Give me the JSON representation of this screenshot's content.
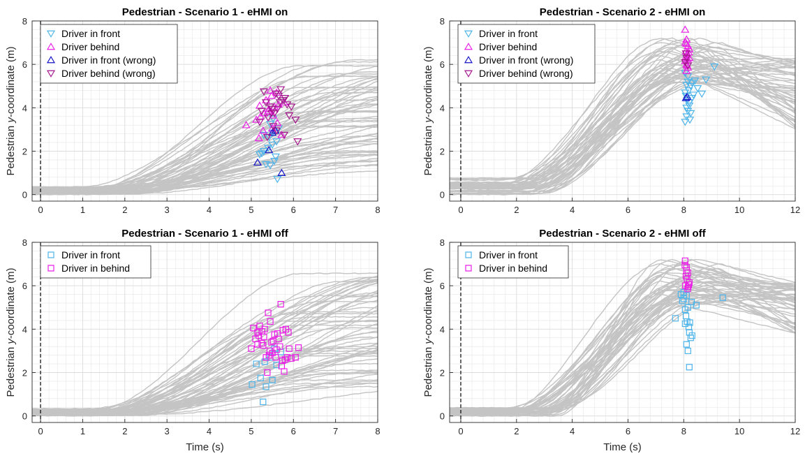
{
  "figure": {
    "xlabel": "Time (s)",
    "ylabel_prefix": "Pedestrian ",
    "ylabel_italic": "y",
    "ylabel_suffix": "-coordinate (m)"
  },
  "colors": {
    "trajectory": "#c4c4c4",
    "front": "#4db4ea",
    "behind": "#ea1ee6",
    "front_wrong": "#1414c8",
    "behind_wrong": "#a4148c",
    "grid": "#e6e6e6",
    "axis": "#262626"
  },
  "chart_data": [
    {
      "type": "scatter",
      "title": "Pedestrian - Scenario 1 - eHMI on",
      "xlabel": "",
      "ylabel": "Pedestrian y-coordinate (m)",
      "xlim": [
        -0.2,
        8
      ],
      "ylim": [
        -0.3,
        8
      ],
      "xticks": [
        0,
        1,
        2,
        3,
        4,
        5,
        6,
        7,
        8
      ],
      "yticks": [
        0,
        2,
        4,
        6,
        8
      ],
      "grid": true,
      "legend_position": "top-left",
      "vline_x": 0,
      "trajectories": {
        "count": 60,
        "t_end": 8,
        "crossing_start": [
          0.8,
          2.2
        ],
        "start_y": [
          0.0,
          0.35
        ],
        "final_y": [
          1.0,
          6.3
        ],
        "peaked": false
      },
      "series": [
        {
          "name": "Driver in front",
          "marker": "triangle-down",
          "color_key": "front",
          "x": [
            5.62,
            5.45,
            5.2,
            5.3,
            5.4,
            5.5,
            5.6,
            5.35,
            5.55,
            5.42,
            5.5,
            5.65,
            5.45,
            5.3,
            5.52,
            5.25,
            5.58
          ],
          "y": [
            0.72,
            1.35,
            1.85,
            2.0,
            2.15,
            2.3,
            2.45,
            1.4,
            1.55,
            2.65,
            2.85,
            3.05,
            3.25,
            2.75,
            3.5,
            1.9,
            1.75
          ]
        },
        {
          "name": "Driver behind",
          "marker": "triangle-up",
          "color_key": "behind",
          "x": [
            4.88,
            5.12,
            5.22,
            5.3,
            5.42,
            5.55,
            5.65,
            5.78,
            5.35,
            5.48,
            5.6,
            5.2,
            5.4,
            5.52,
            5.72,
            5.28,
            5.62,
            5.45,
            5.18,
            5.5
          ],
          "y": [
            3.2,
            3.45,
            3.6,
            3.75,
            3.95,
            4.05,
            4.15,
            4.25,
            4.35,
            4.55,
            4.7,
            4.1,
            3.85,
            3.65,
            2.75,
            2.95,
            3.3,
            4.8,
            2.6,
            3.05
          ]
        },
        {
          "name": "Driver in front (wrong)",
          "marker": "triangle-up",
          "color_key": "front_wrong",
          "x": [
            5.15,
            5.42,
            5.5,
            5.57,
            5.72
          ],
          "y": [
            1.48,
            2.05,
            2.85,
            2.95,
            1.0
          ]
        },
        {
          "name": "Driver behind (wrong)",
          "marker": "triangle-down",
          "color_key": "behind_wrong",
          "x": [
            5.25,
            5.35,
            5.45,
            5.55,
            5.65,
            5.75,
            5.85,
            5.95,
            6.05,
            6.1,
            5.3,
            5.5,
            5.7,
            5.9,
            5.2,
            5.4,
            5.6,
            5.8,
            5.52,
            5.68,
            5.38,
            5.48,
            5.58,
            5.78,
            5.62
          ],
          "y": [
            3.85,
            4.25,
            4.05,
            3.75,
            4.55,
            4.35,
            4.15,
            4.05,
            3.45,
            2.45,
            4.75,
            3.95,
            4.85,
            3.65,
            3.35,
            3.55,
            2.95,
            4.45,
            3.15,
            4.25,
            2.65,
            3.75,
            4.65,
            2.75,
            3.95
          ]
        }
      ]
    },
    {
      "type": "scatter",
      "title": "Pedestrian - Scenario 2 - eHMI on",
      "xlabel": "",
      "ylabel": "Pedestrian y-coordinate (m)",
      "xlim": [
        -0.4,
        12
      ],
      "ylim": [
        -0.3,
        8
      ],
      "xticks": [
        0,
        2,
        4,
        6,
        8,
        10,
        12
      ],
      "yticks": [
        0,
        2,
        4,
        6,
        8
      ],
      "grid": true,
      "legend_position": "top-left",
      "vline_x": 0,
      "trajectories": {
        "count": 50,
        "t_end": 12,
        "crossing_start": [
          1.2,
          3.2
        ],
        "start_y": [
          0.0,
          0.8
        ],
        "final_y": [
          3.0,
          6.3
        ],
        "peaked": true
      },
      "series": [
        {
          "name": "Driver in front",
          "marker": "triangle-down",
          "color_key": "front",
          "x": [
            8.05,
            8.1,
            8.15,
            8.2,
            8.12,
            8.08,
            8.18,
            8.25,
            8.3,
            8.4,
            8.5,
            8.65,
            8.8,
            9.1,
            8.15,
            8.05,
            8.22,
            8.1,
            8.2,
            8.35,
            8.15,
            8.05,
            8.25,
            8.1,
            8.3
          ],
          "y": [
            3.35,
            3.6,
            3.85,
            4.1,
            4.35,
            4.55,
            4.8,
            5.0,
            5.15,
            5.25,
            4.9,
            4.65,
            5.3,
            5.9,
            5.45,
            5.6,
            3.45,
            4.0,
            4.25,
            4.6,
            5.2,
            4.7,
            3.75,
            5.05,
            4.45
          ]
        },
        {
          "name": "Driver behind",
          "marker": "triangle-up",
          "color_key": "behind",
          "x": [
            8.05,
            8.1,
            8.15,
            8.08,
            8.12,
            8.2,
            8.05,
            8.1,
            8.15,
            8.1,
            8.18,
            8.06,
            8.14,
            8.1,
            8.2,
            8.08,
            8.12
          ],
          "y": [
            7.6,
            7.15,
            6.85,
            6.6,
            6.45,
            6.3,
            6.15,
            6.0,
            5.85,
            5.7,
            6.55,
            7.0,
            6.25,
            6.95,
            6.7,
            6.35,
            5.95
          ]
        },
        {
          "name": "Driver in front (wrong)",
          "marker": "triangle-up",
          "color_key": "front_wrong",
          "x": [
            8.08,
            8.12
          ],
          "y": [
            4.45,
            4.5
          ]
        },
        {
          "name": "Driver behind (wrong)",
          "marker": "triangle-down",
          "color_key": "behind_wrong",
          "x": [
            8.05,
            8.1,
            8.15,
            8.08
          ],
          "y": [
            6.1,
            6.3,
            5.95,
            6.5
          ]
        }
      ]
    },
    {
      "type": "scatter",
      "title": "Pedestrian - Scenario 1 - eHMI off",
      "xlabel": "Time (s)",
      "ylabel": "Pedestrian y-coordinate (m)",
      "xlim": [
        -0.2,
        8
      ],
      "ylim": [
        -0.3,
        8
      ],
      "xticks": [
        0,
        1,
        2,
        3,
        4,
        5,
        6,
        7,
        8
      ],
      "yticks": [
        0,
        2,
        4,
        6,
        8
      ],
      "grid": true,
      "legend_position": "top-left",
      "vline_x": 0,
      "trajectories": {
        "count": 60,
        "t_end": 8,
        "crossing_start": [
          0.9,
          2.4
        ],
        "start_y": [
          0.0,
          0.35
        ],
        "final_y": [
          1.3,
          6.8
        ],
        "peaked": false
      },
      "series": [
        {
          "name": "Driver in front",
          "marker": "square",
          "color_key": "front",
          "x": [
            5.28,
            5.35,
            5.02,
            5.12,
            5.22,
            5.5,
            5.6,
            5.7,
            5.45,
            5.32,
            5.55
          ],
          "y": [
            0.65,
            1.35,
            1.45,
            2.4,
            1.75,
            1.65,
            2.35,
            2.95,
            2.7,
            2.5,
            3.1
          ]
        },
        {
          "name": "Driver in behind",
          "marker": "square",
          "color_key": "behind",
          "x": [
            5.0,
            5.05,
            5.1,
            5.15,
            5.2,
            5.25,
            5.3,
            5.35,
            5.4,
            5.45,
            5.5,
            5.55,
            5.6,
            5.65,
            5.7,
            5.75,
            5.8,
            5.85,
            5.9,
            5.95,
            6.05,
            6.12,
            5.15,
            5.25,
            5.42,
            5.62,
            5.72,
            5.82,
            5.38,
            5.48,
            5.58,
            5.78,
            5.18,
            5.28,
            5.52,
            5.68,
            5.88,
            5.32,
            5.44,
            5.74
          ],
          "y": [
            3.1,
            4.05,
            3.55,
            3.85,
            4.15,
            3.35,
            3.65,
            2.7,
            4.75,
            4.35,
            2.9,
            3.75,
            3.05,
            3.55,
            5.15,
            3.95,
            2.6,
            2.7,
            3.1,
            2.65,
            2.7,
            3.15,
            3.3,
            3.9,
            2.8,
            3.8,
            2.3,
            4.0,
            2.0,
            3.4,
            2.7,
            2.05,
            3.7,
            3.25,
            3.45,
            3.2,
            3.85,
            4.0,
            3.0,
            2.55
          ]
        }
      ]
    },
    {
      "type": "scatter",
      "title": "Pedestrian - Scenario 2 - eHMI off",
      "xlabel": "Time (s)",
      "ylabel": "Pedestrian y-coordinate (m)",
      "xlim": [
        -0.4,
        12
      ],
      "ylim": [
        -0.3,
        8
      ],
      "xticks": [
        0,
        2,
        4,
        6,
        8,
        10,
        12
      ],
      "yticks": [
        0,
        2,
        4,
        6,
        8
      ],
      "grid": true,
      "legend_position": "top-left",
      "vline_x": 0,
      "trajectories": {
        "count": 50,
        "t_end": 12,
        "crossing_start": [
          1.3,
          3.5
        ],
        "start_y": [
          0.0,
          0.4
        ],
        "final_y": [
          3.8,
          6.2
        ],
        "peaked": true
      },
      "series": [
        {
          "name": "Driver in front",
          "marker": "square",
          "color_key": "front",
          "x": [
            8.2,
            8.15,
            8.25,
            8.1,
            8.3,
            8.05,
            7.9,
            8.0,
            7.7,
            8.12,
            8.22,
            8.45,
            9.4,
            8.05,
            8.15,
            8.18,
            8.28,
            8.08,
            8.0,
            7.95,
            8.1,
            8.2
          ],
          "y": [
            2.25,
            3.0,
            3.6,
            3.3,
            3.7,
            4.25,
            5.6,
            5.4,
            4.5,
            4.35,
            4.3,
            5.1,
            5.45,
            4.9,
            5.0,
            4.1,
            5.25,
            4.6,
            5.7,
            5.3,
            5.55,
            3.85
          ]
        },
        {
          "name": "Driver in behind",
          "marker": "square",
          "color_key": "behind",
          "x": [
            8.05,
            8.1,
            8.15,
            8.08,
            8.12,
            8.2,
            8.06,
            8.14,
            8.1,
            8.18,
            8.04,
            8.16
          ],
          "y": [
            7.15,
            6.85,
            6.6,
            6.45,
            6.3,
            6.15,
            6.0,
            5.85,
            6.7,
            6.05,
            6.95,
            5.95
          ]
        }
      ]
    }
  ]
}
